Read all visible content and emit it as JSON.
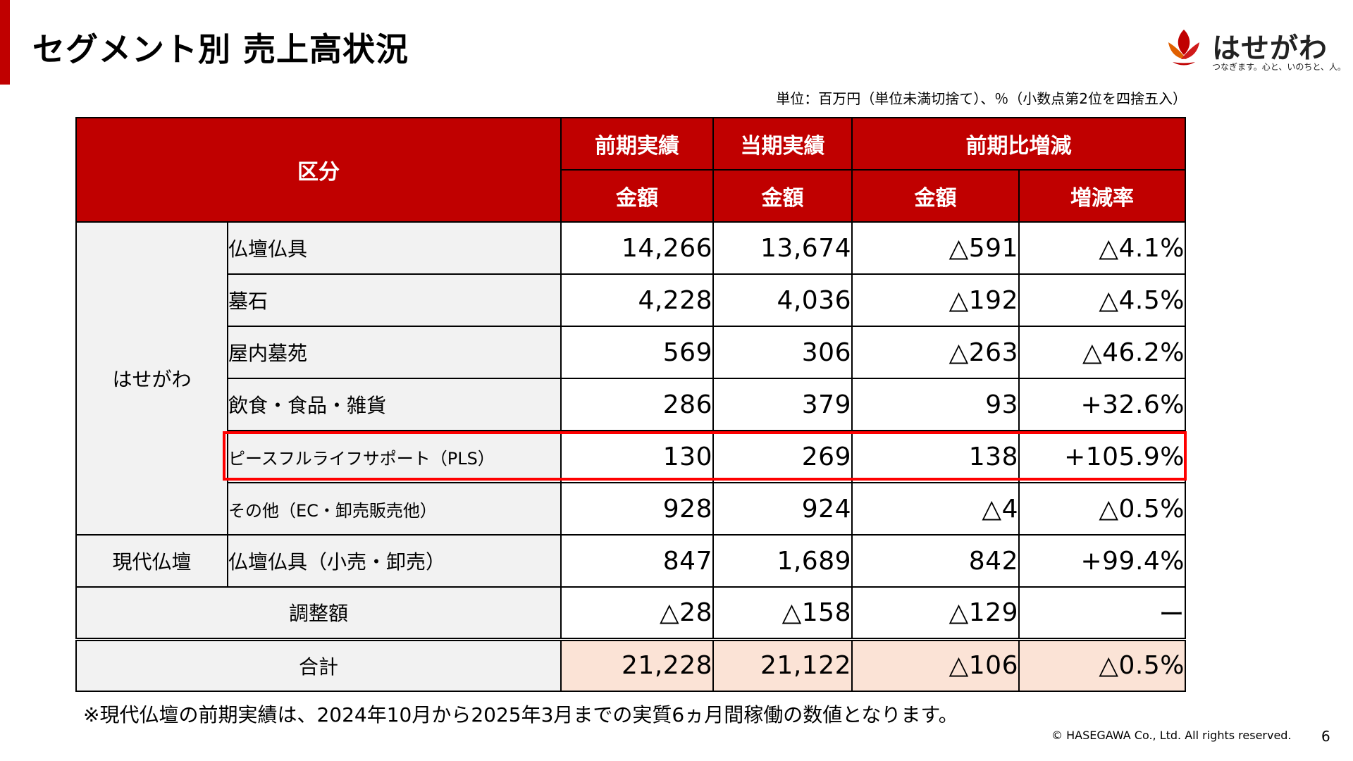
{
  "header": {
    "title": "セグメント別 売上高状況",
    "logo_name": "はせがわ",
    "logo_tagline": "つなぎます。心と、いのちと、人。",
    "unit_note": "単位：百万円（単位未満切捨て）、％（小数点第2位を四捨五入）"
  },
  "table": {
    "headers": {
      "category": "区分",
      "prev_period": "前期実績",
      "curr_period": "当期実績",
      "change": "前期比増減",
      "amount": "金額",
      "rate": "増減率"
    },
    "groups": {
      "hasegawa": "はせがわ",
      "gendai": "現代仏壇"
    },
    "rows": [
      {
        "label": "仏壇仏具",
        "prev": "14,266",
        "curr": "13,674",
        "diff": "△591",
        "rate": "△4.1%"
      },
      {
        "label": "墓石",
        "prev": "4,228",
        "curr": "4,036",
        "diff": "△192",
        "rate": "△4.5%"
      },
      {
        "label": "屋内墓苑",
        "prev": "569",
        "curr": "306",
        "diff": "△263",
        "rate": "△46.2%"
      },
      {
        "label": "飲食・食品・雑貨",
        "prev": "286",
        "curr": "379",
        "diff": "93",
        "rate": "+32.6%"
      },
      {
        "label": "ピースフルライフサポート（PLS）",
        "prev": "130",
        "curr": "269",
        "diff": "138",
        "rate": "+105.9%"
      },
      {
        "label": "その他（EC・卸売販売他）",
        "prev": "928",
        "curr": "924",
        "diff": "△4",
        "rate": "△0.5%"
      },
      {
        "label": "仏壇仏具（小売・卸売）",
        "prev": "847",
        "curr": "1,689",
        "diff": "842",
        "rate": "+99.4%"
      }
    ],
    "adjustment": {
      "label": "調整額",
      "prev": "△28",
      "curr": "△158",
      "diff": "△129",
      "rate": "ー"
    },
    "total": {
      "label": "合計",
      "prev": "21,228",
      "curr": "21,122",
      "diff": "△106",
      "rate": "△0.5%"
    }
  },
  "footnote": "※現代仏壇の前期実績は、2024年10月から2025年3月までの実質6ヵ月間稼働の数値となります。",
  "footer": {
    "copyright": "© HASEGAWA Co., Ltd. All rights reserved.",
    "page_number": "6"
  },
  "colors": {
    "accent": "#c00000",
    "highlight_border": "#ff0000",
    "total_fill": "#fbe3d6",
    "label_fill": "#f2f2f2"
  }
}
